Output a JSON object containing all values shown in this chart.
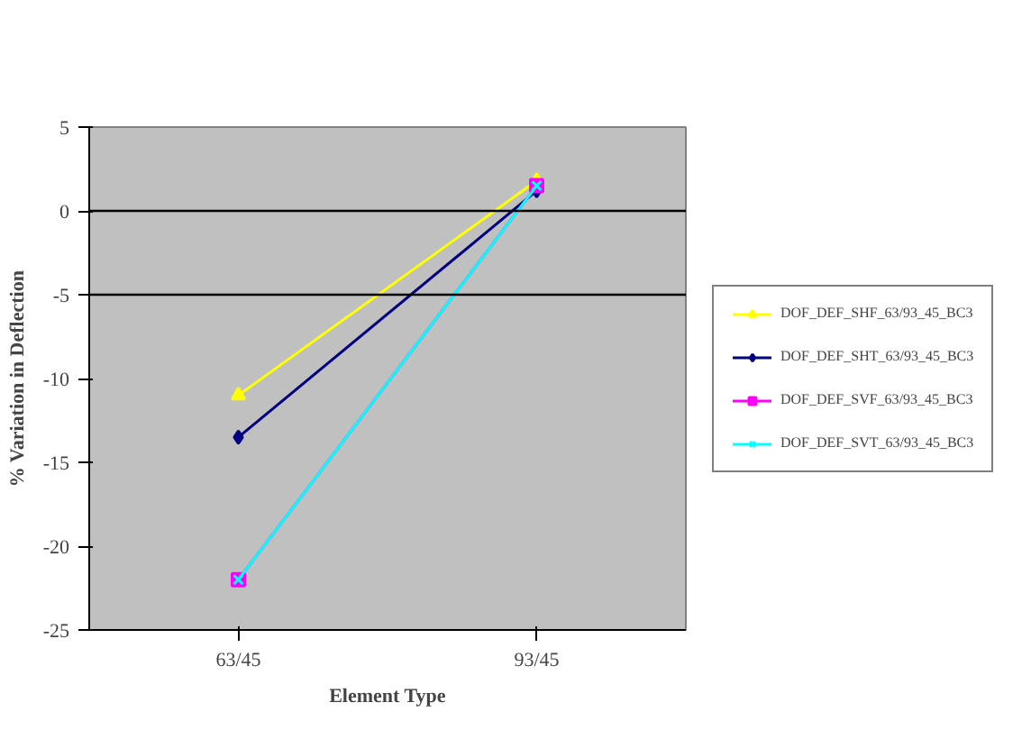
{
  "chart_data": {
    "type": "line",
    "xlabel": "Element Type",
    "ylabel": "% Variation in Deflection",
    "categories": [
      "63/45",
      "93/45"
    ],
    "ylim": [
      -25,
      5
    ],
    "yticks": [
      -25,
      -20,
      -15,
      -10,
      -5,
      0,
      5
    ],
    "ref_lines": [
      {
        "axis": "y",
        "value": 0,
        "color": "#000000"
      },
      {
        "axis": "y",
        "value": -5,
        "color": "#000000"
      }
    ],
    "legend": "right",
    "series": [
      {
        "name": "DOF_DEF_SHF_63/93_45_BC3",
        "color": "#ffff00",
        "marker": "triangle",
        "values": [
          -11,
          1.8
        ]
      },
      {
        "name": "DOF_DEF_SHT_63/93_45_BC3",
        "color": "#000080",
        "marker": "diamond",
        "values": [
          -13.5,
          1.2
        ]
      },
      {
        "name": "DOF_DEF_SVF_63/93_45_BC3",
        "color": "#ff00ff",
        "marker": "square",
        "values": [
          -22,
          1.5
        ]
      },
      {
        "name": "DOF_DEF_SVT_63/93_45_BC3",
        "color": "#00ffff",
        "marker": "cross",
        "values": [
          -22,
          1.5
        ]
      }
    ]
  }
}
